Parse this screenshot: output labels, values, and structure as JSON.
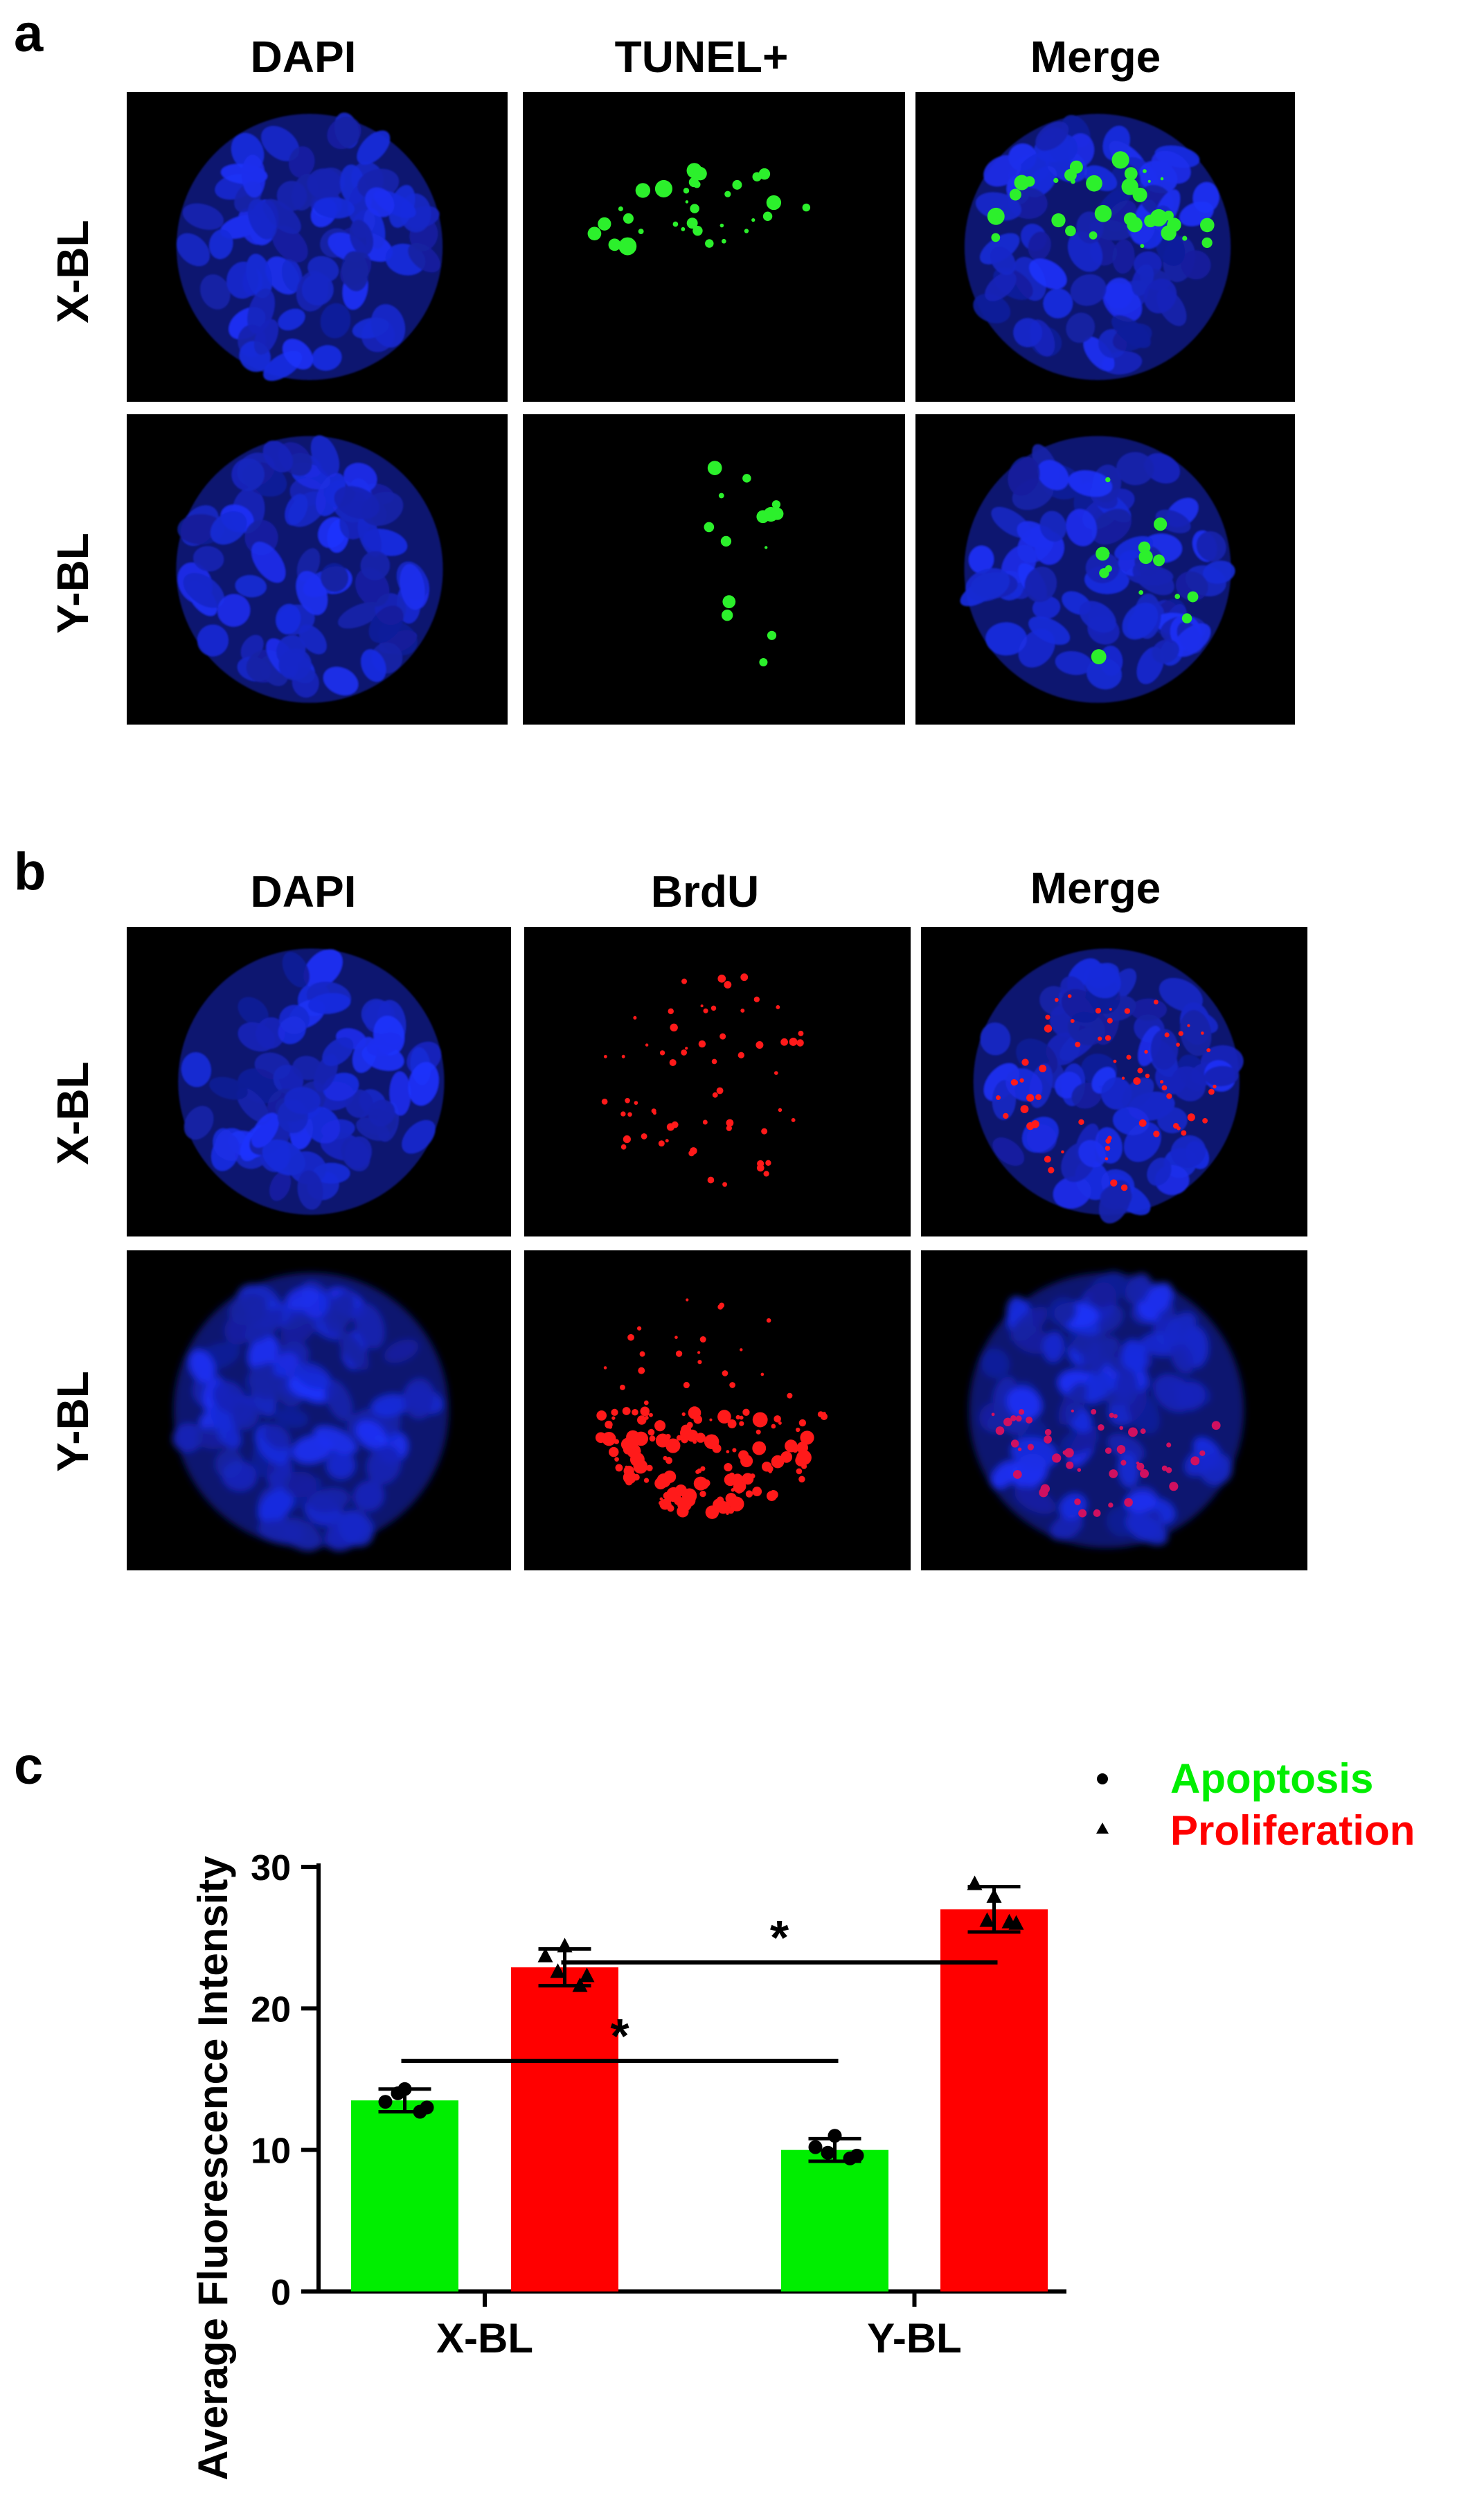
{
  "panels": {
    "a": {
      "letter": "a",
      "columns": [
        "DAPI",
        "TUNEL+",
        "Merge"
      ],
      "rows": [
        "X-BL",
        "Y-BL"
      ]
    },
    "b": {
      "letter": "b",
      "columns": [
        "DAPI",
        "BrdU",
        "Merge"
      ],
      "rows": [
        "X-BL",
        "Y-BL"
      ]
    }
  },
  "colors": {
    "dapi": "#1a2fe0",
    "tunel": "#22e022",
    "brdu": "#ff1010",
    "apoptosis": "#00ee00",
    "proliferation": "#ff0000"
  },
  "chart_data": {
    "letter": "c",
    "type": "bar",
    "ylabel": "Average Fluorescence Intensity",
    "ylim": [
      0,
      30
    ],
    "yticks": [
      0,
      10,
      20,
      30
    ],
    "categories": [
      "X-BL",
      "Y-BL"
    ],
    "series": [
      {
        "name": "Apoptosis",
        "marker": "circle",
        "color": "#00ee00",
        "values": [
          13.5,
          10.0
        ],
        "errors": [
          0.8,
          0.8
        ],
        "points": [
          [
            13.4,
            14.3,
            12.7,
            14.0,
            13.0
          ],
          [
            10.2,
            11.0,
            9.4,
            9.8,
            9.6
          ]
        ]
      },
      {
        "name": "Proliferation",
        "marker": "triangle",
        "color": "#ff0000",
        "values": [
          22.9,
          27.0
        ],
        "errors": [
          1.3,
          1.6
        ],
        "points": [
          [
            23.7,
            24.4,
            21.6,
            22.6,
            22.3
          ],
          [
            28.8,
            27.9,
            26.1,
            26.2,
            26.0
          ]
        ]
      }
    ],
    "significance": [
      {
        "label": "*",
        "from_series": 0,
        "from_category": 0,
        "to_series": 0,
        "to_category": 1
      },
      {
        "label": "*",
        "from_series": 1,
        "from_category": 0,
        "to_series": 1,
        "to_category": 1
      }
    ]
  }
}
